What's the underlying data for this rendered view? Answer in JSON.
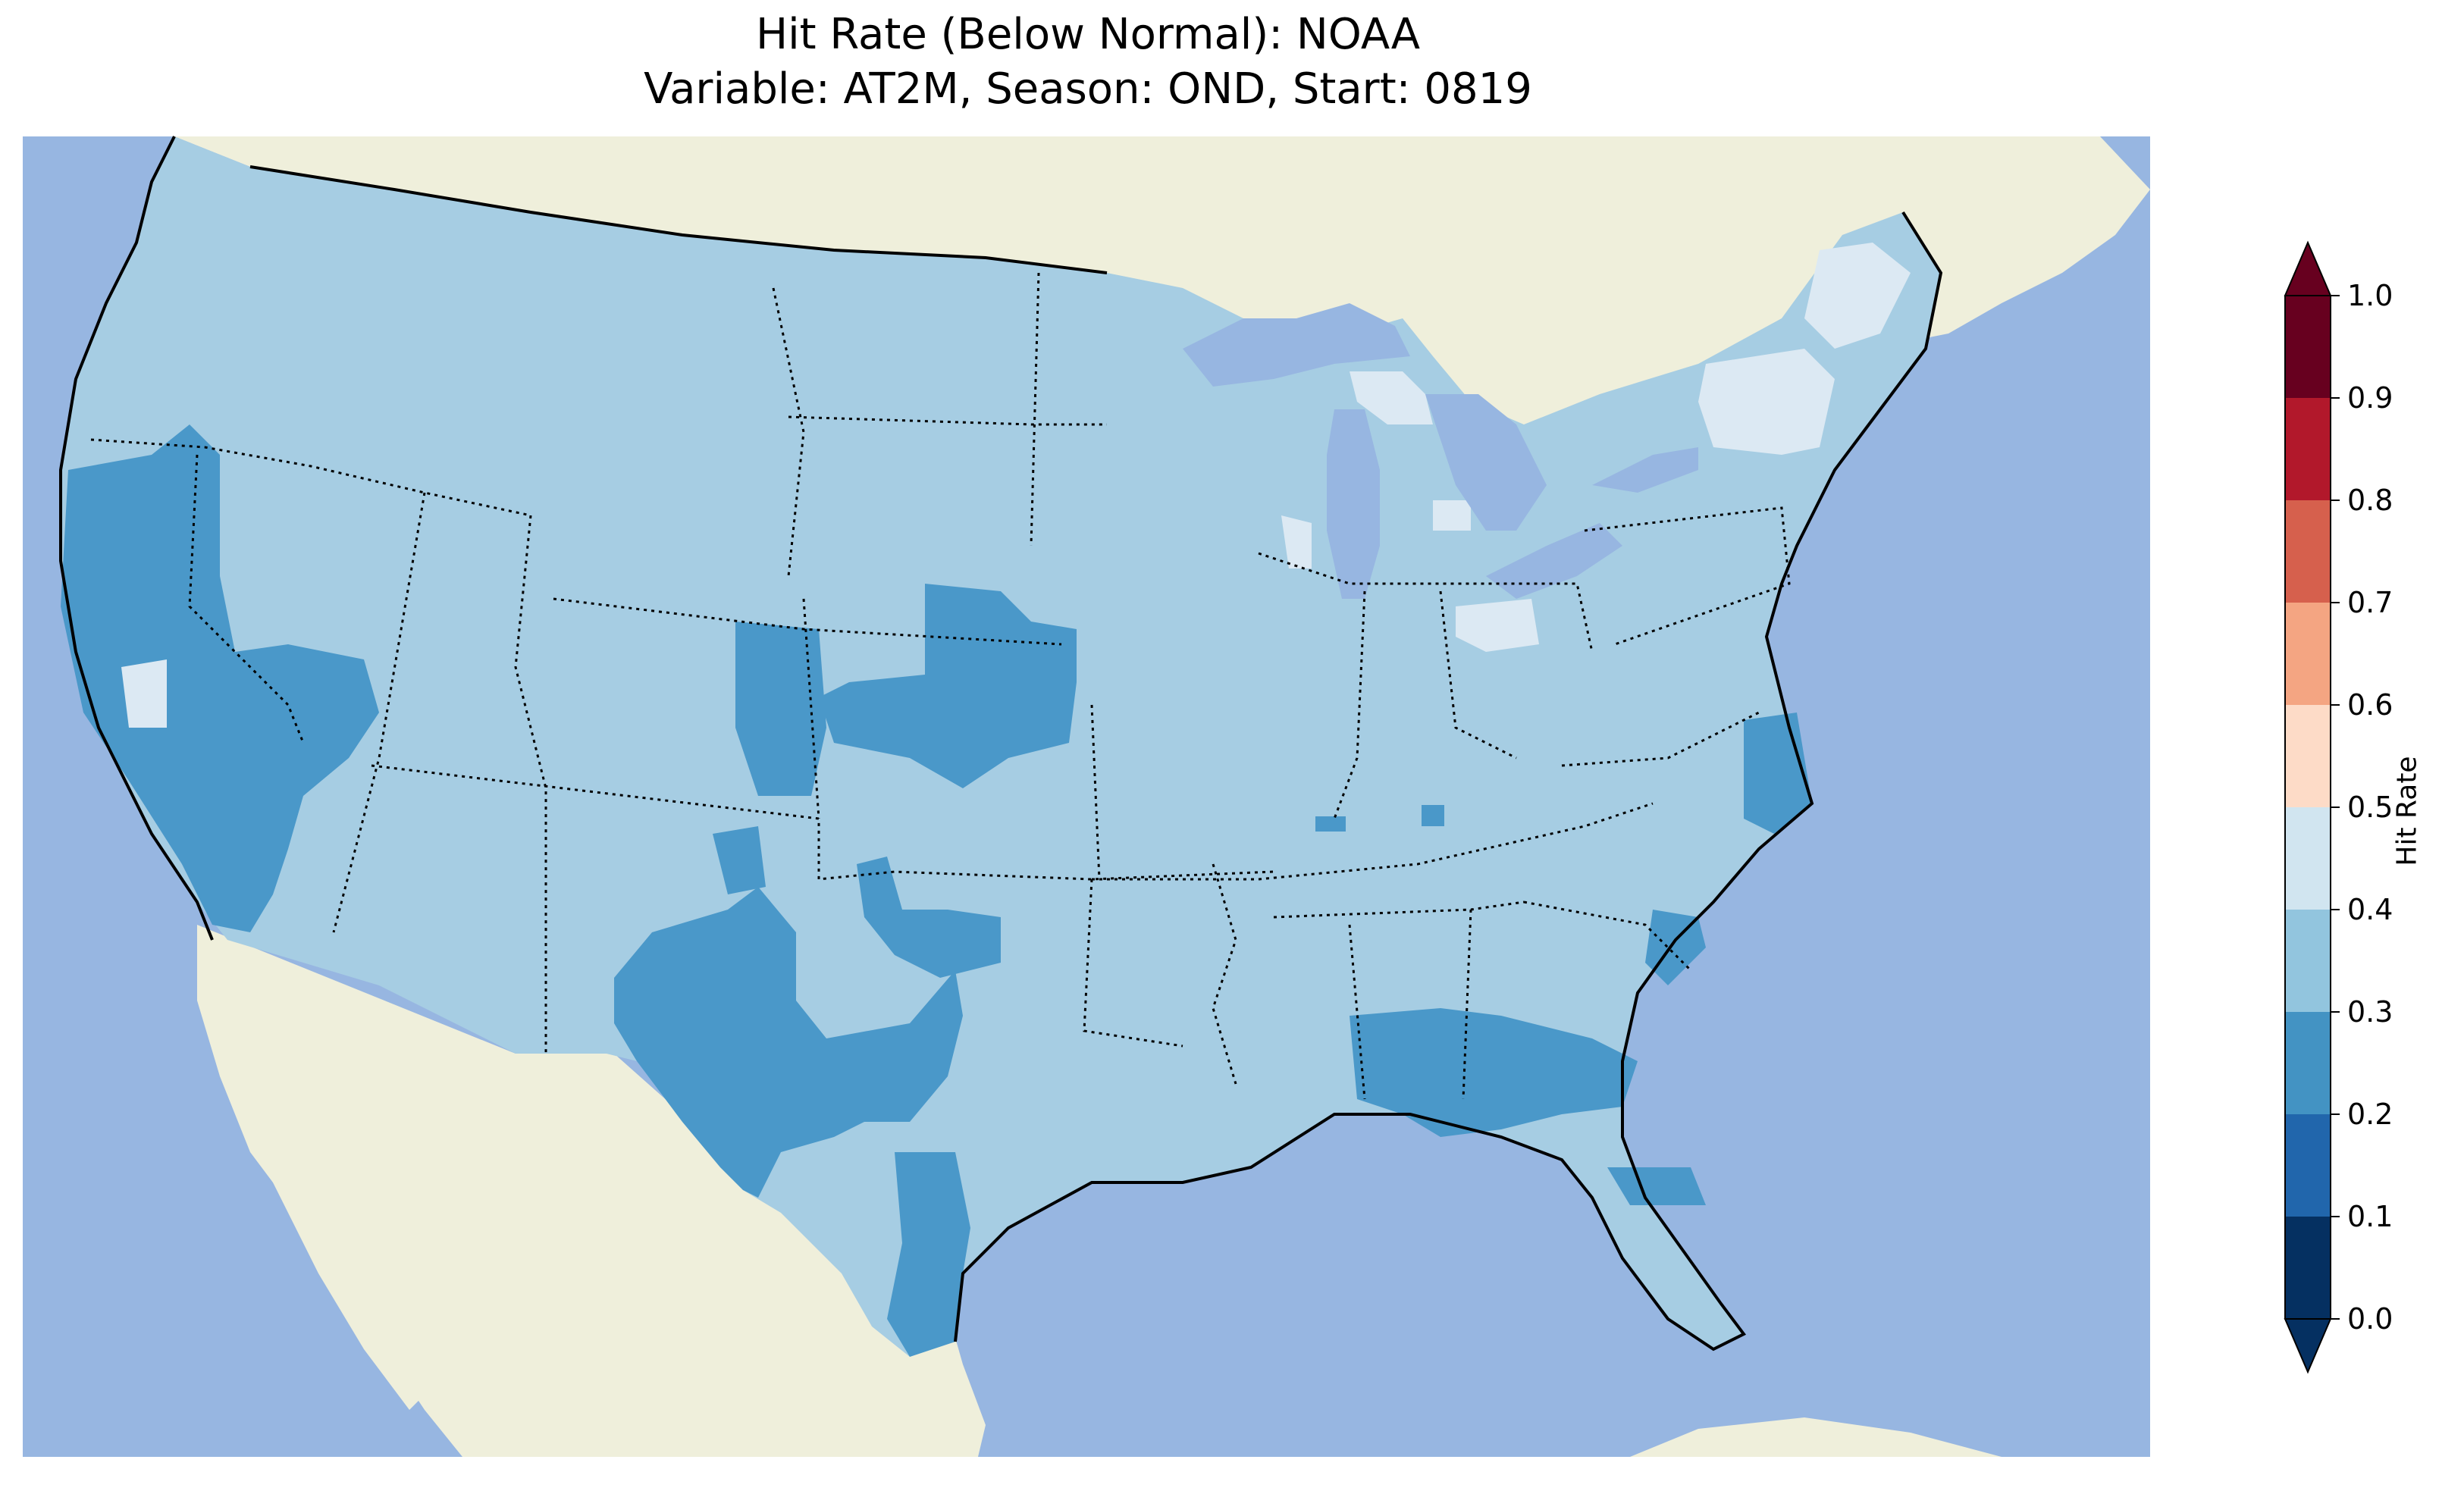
{
  "figure": {
    "title_line1": "Hit Rate (Below Normal): NOAA",
    "title_line2": "Variable: AT2M, Season: OND, Start: 0819"
  },
  "map": {
    "projection": "lambert-conformal",
    "extent": "continental-united-states",
    "ocean_color": "#97b6e1",
    "land_color": "#efefdb",
    "boundaries": [
      "coastlines",
      "country-borders",
      "state-borders"
    ]
  },
  "colorbar": {
    "label": "Hit Rate",
    "orientation": "vertical",
    "extend": "both",
    "ticks": [
      "0.0",
      "0.1",
      "0.2",
      "0.3",
      "0.4",
      "0.5",
      "0.6",
      "0.7",
      "0.8",
      "0.9",
      "1.0"
    ],
    "bins": [
      {
        "range": [
          0.0,
          0.1
        ],
        "color": "#053061"
      },
      {
        "range": [
          0.1,
          0.2
        ],
        "color": "#2166ac"
      },
      {
        "range": [
          0.2,
          0.3
        ],
        "color": "#4393c3"
      },
      {
        "range": [
          0.3,
          0.4
        ],
        "color": "#92c5de"
      },
      {
        "range": [
          0.4,
          0.5
        ],
        "color": "#d1e5f0"
      },
      {
        "range": [
          0.5,
          0.6
        ],
        "color": "#fddbc7"
      },
      {
        "range": [
          0.6,
          0.7
        ],
        "color": "#f4a582"
      },
      {
        "range": [
          0.7,
          0.8
        ],
        "color": "#d6604d"
      },
      {
        "range": [
          0.8,
          0.9
        ],
        "color": "#b2182b"
      },
      {
        "range": [
          0.9,
          1.0
        ],
        "color": "#67001f"
      }
    ],
    "under_color": "#053061",
    "over_color": "#67001f"
  },
  "field": {
    "dominant_range": [
      0.3,
      0.4
    ],
    "regions_0_2_to_0_3": [
      "California",
      "western Nevada",
      "southwestern Texas and southeastern New Mexico",
      "western Oklahoma",
      "Colorado Front Range",
      "Nebraska and Kansas",
      "southern Georgia, Alabama and Mississippi",
      "northern Florida",
      "eastern North Carolina",
      "South Carolina coast",
      "central Texas Gulf coast"
    ],
    "regions_0_4_to_0_5": [
      "northern Michigan",
      "northern New England",
      "northern New York",
      "central Ohio",
      "northern Illinois"
    ]
  }
}
